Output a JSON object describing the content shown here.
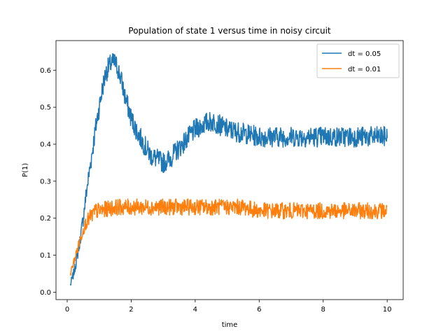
{
  "chart_data": {
    "type": "line",
    "title": "Population of state 1 versus time in noisy circuit",
    "xlabel": "time",
    "ylabel": "P(1)",
    "xlim": [
      -0.35,
      10.5
    ],
    "ylim": [
      -0.02,
      0.68
    ],
    "xticks": [
      0,
      2,
      4,
      6,
      8,
      10
    ],
    "yticks": [
      0.0,
      0.1,
      0.2,
      0.3,
      0.4,
      0.5,
      0.6
    ],
    "xtick_labels": [
      "0",
      "2",
      "4",
      "6",
      "8",
      "10"
    ],
    "ytick_labels": [
      "0.0",
      "0.1",
      "0.2",
      "0.3",
      "0.4",
      "0.5",
      "0.6"
    ],
    "grid": false,
    "legend_position": "top-right",
    "series": [
      {
        "name": "dt = 0.05",
        "color": "#1f77b4",
        "x": [
          0.1,
          0.2,
          0.3,
          0.4,
          0.5,
          0.6,
          0.7,
          0.8,
          0.9,
          1.0,
          1.1,
          1.2,
          1.3,
          1.4,
          1.5,
          1.6,
          1.7,
          1.8,
          1.9,
          2.0,
          2.2,
          2.4,
          2.6,
          2.8,
          3.0,
          3.2,
          3.4,
          3.6,
          3.8,
          4.0,
          4.2,
          4.4,
          4.6,
          4.8,
          5.0,
          5.5,
          6.0,
          6.5,
          7.0,
          7.5,
          8.0,
          8.5,
          9.0,
          9.5,
          10.0
        ],
        "values": [
          0.02,
          0.05,
          0.09,
          0.14,
          0.2,
          0.27,
          0.33,
          0.39,
          0.45,
          0.5,
          0.55,
          0.59,
          0.61,
          0.62,
          0.62,
          0.6,
          0.57,
          0.53,
          0.5,
          0.47,
          0.43,
          0.4,
          0.37,
          0.36,
          0.35,
          0.36,
          0.38,
          0.4,
          0.42,
          0.44,
          0.45,
          0.46,
          0.46,
          0.45,
          0.44,
          0.43,
          0.42,
          0.42,
          0.42,
          0.42,
          0.42,
          0.42,
          0.42,
          0.42,
          0.42
        ]
      },
      {
        "name": "dt = 0.01",
        "color": "#ff7f0e",
        "x": [
          0.1,
          0.2,
          0.3,
          0.4,
          0.5,
          0.6,
          0.7,
          0.8,
          0.9,
          1.0,
          1.5,
          2.0,
          2.5,
          3.0,
          3.5,
          4.0,
          4.5,
          5.0,
          5.5,
          6.0,
          6.5,
          7.0,
          7.5,
          8.0,
          8.5,
          9.0,
          9.5,
          10.0
        ],
        "values": [
          0.05,
          0.08,
          0.11,
          0.14,
          0.17,
          0.19,
          0.2,
          0.21,
          0.22,
          0.22,
          0.23,
          0.23,
          0.23,
          0.23,
          0.23,
          0.23,
          0.23,
          0.23,
          0.23,
          0.22,
          0.22,
          0.22,
          0.22,
          0.22,
          0.22,
          0.22,
          0.22,
          0.22
        ]
      }
    ]
  }
}
